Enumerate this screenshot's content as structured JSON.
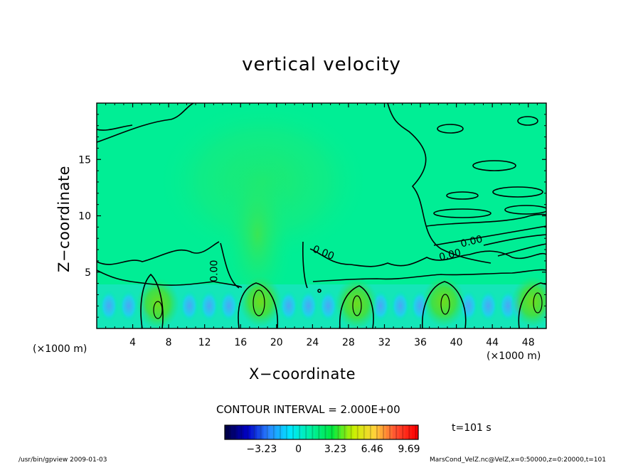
{
  "chart_data": {
    "type": "heatmap",
    "title": "vertical velocity",
    "xlabel": "X−coordinate",
    "ylabel": "Z−coordinate",
    "x_unit_left": "(×1000 m)",
    "x_unit_right": "(×1000 m)",
    "xlim": [
      0,
      50
    ],
    "ylim": [
      0,
      20
    ],
    "x_ticks": [
      {
        "v": 4,
        "label": "4"
      },
      {
        "v": 8,
        "label": "8"
      },
      {
        "v": 12,
        "label": "12"
      },
      {
        "v": 16,
        "label": "16"
      },
      {
        "v": 20,
        "label": "20"
      },
      {
        "v": 24,
        "label": "24"
      },
      {
        "v": 28,
        "label": "28"
      },
      {
        "v": 32,
        "label": "32"
      },
      {
        "v": 36,
        "label": "36"
      },
      {
        "v": 40,
        "label": "40"
      },
      {
        "v": 44,
        "label": "44"
      },
      {
        "v": 48,
        "label": "48"
      }
    ],
    "y_ticks": [
      {
        "v": 5,
        "label": "5"
      },
      {
        "v": 10,
        "label": "10"
      },
      {
        "v": 15,
        "label": "15"
      }
    ],
    "updraft_centers": [
      {
        "x": 6.8,
        "z": 2.2
      },
      {
        "x": 18.2,
        "z": 2.4
      },
      {
        "x": 28.9,
        "z": 2.2
      },
      {
        "x": 38.6,
        "z": 2.4
      },
      {
        "x": 48.5,
        "z": 2.4
      }
    ],
    "contour_labels": [
      {
        "x": 13.1,
        "z": 5.1,
        "text": "0.00",
        "rotate": -90
      },
      {
        "x": 25.2,
        "z": 6.7,
        "text": "0.00",
        "rotate": 22
      },
      {
        "x": 39.3,
        "z": 6.5,
        "text": "0.00",
        "rotate": -14
      },
      {
        "x": 41.7,
        "z": 7.7,
        "text": "0.00",
        "rotate": -14
      }
    ],
    "contour_interval": "CONTOUR INTERVAL = 2.000E+00",
    "colorbar": {
      "colors": [
        "#00004a",
        "#0000c8",
        "#2a86ff",
        "#00e6ff",
        "#00f0a0",
        "#00e840",
        "#c8f000",
        "#ffd23a",
        "#ff5030",
        "#ff0000"
      ],
      "ticks": [
        {
          "v": -3.23,
          "label": "−3.23"
        },
        {
          "v": 0,
          "label": "0"
        },
        {
          "v": 3.23,
          "label": "3.23"
        },
        {
          "v": 6.46,
          "label": "6.46"
        },
        {
          "v": 9.69,
          "label": "9.69"
        }
      ],
      "range": [
        -6.46,
        10.5
      ]
    },
    "time_label": "t=101  s",
    "footer_left": "/usr/bin/gpview   2009-01-03",
    "footer_right": "MarsCond_VelZ.nc@VelZ,x=0:50000,z=0:20000,t=101"
  }
}
